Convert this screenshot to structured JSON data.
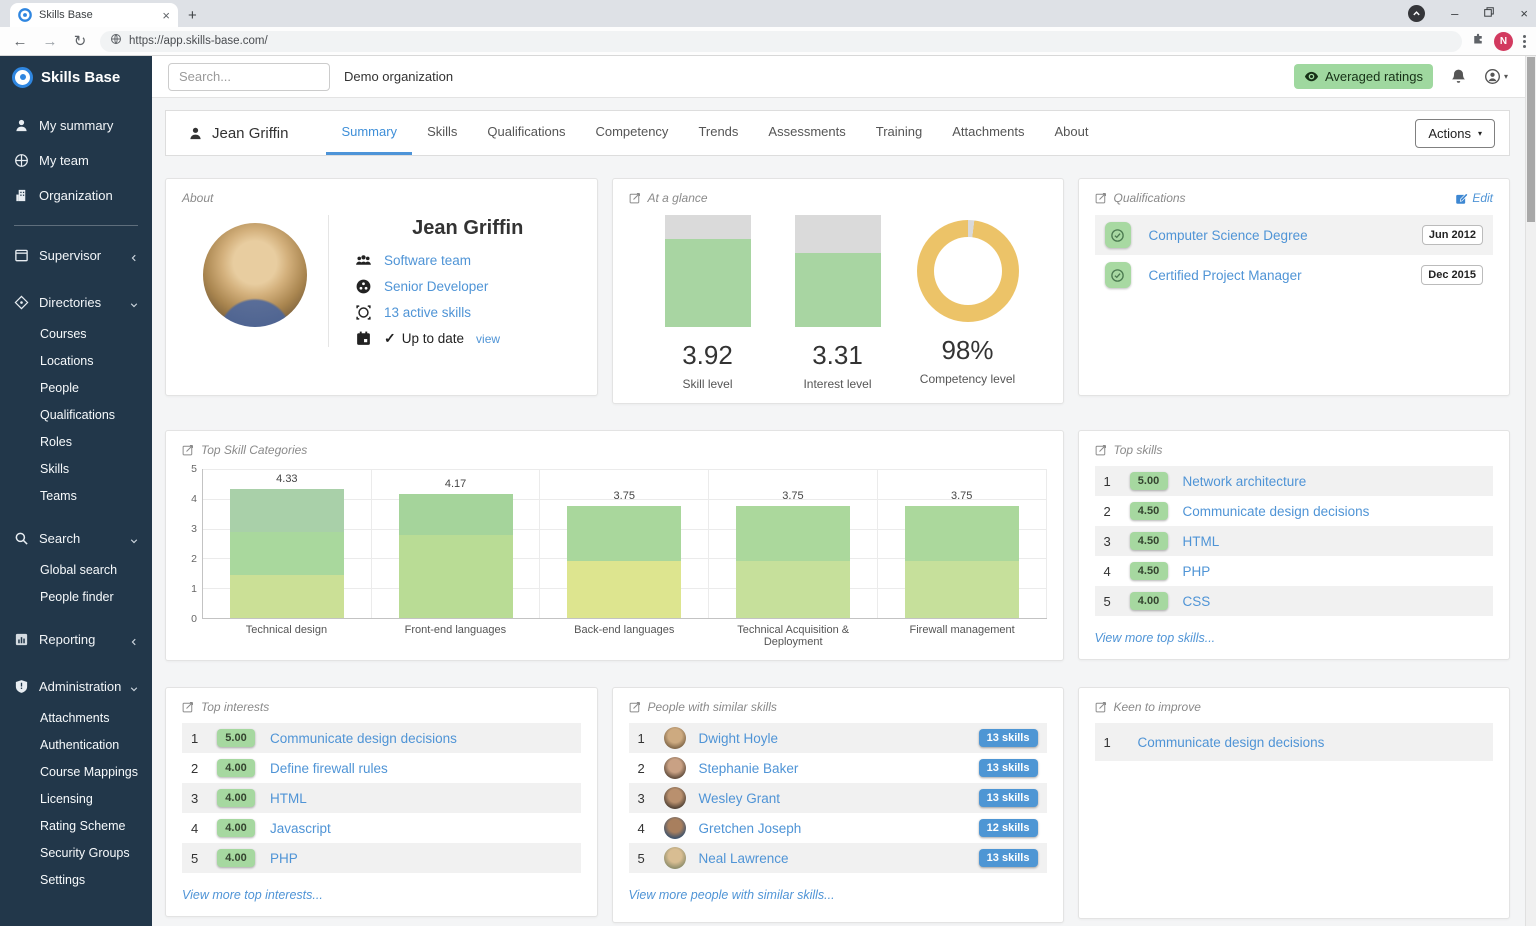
{
  "browser": {
    "tab_title": "Skills Base",
    "url": "https://app.skills-base.com/",
    "profile_initial": "N"
  },
  "topbar": {
    "search_placeholder": "Search...",
    "organization": "Demo organization",
    "averaged_ratings_label": "Averaged ratings"
  },
  "sidebar": {
    "brand": "Skills Base",
    "primary": [
      {
        "label": "My summary",
        "icon": "user-icon"
      },
      {
        "label": "My team",
        "icon": "users-icon"
      },
      {
        "label": "Organization",
        "icon": "building-icon"
      }
    ],
    "sections": [
      {
        "label": "Supervisor",
        "icon": "window-icon",
        "state": "collapsed",
        "children": []
      },
      {
        "label": "Directories",
        "icon": "compass-icon",
        "state": "expanded",
        "children": [
          "Courses",
          "Locations",
          "People",
          "Qualifications",
          "Roles",
          "Skills",
          "Teams"
        ]
      },
      {
        "label": "Search",
        "icon": "search-icon",
        "state": "expanded",
        "children": [
          "Global search",
          "People finder"
        ]
      },
      {
        "label": "Reporting",
        "icon": "chart-icon",
        "state": "collapsed",
        "children": []
      },
      {
        "label": "Administration",
        "icon": "shield-icon",
        "state": "expanded",
        "children": [
          "Attachments",
          "Authentication",
          "Course Mappings",
          "Licensing",
          "Rating Scheme",
          "Security Groups",
          "Settings"
        ]
      }
    ]
  },
  "profile": {
    "name": "Jean Griffin",
    "tabs": [
      "Summary",
      "Skills",
      "Qualifications",
      "Competency",
      "Trends",
      "Assessments",
      "Training",
      "Attachments",
      "About"
    ],
    "active_tab": "Summary",
    "actions_label": "Actions"
  },
  "about": {
    "title": "About",
    "name": "Jean Griffin",
    "team": "Software team",
    "role": "Senior Developer",
    "active_skills": "13 active skills",
    "status": "Up to date",
    "status_link": "view"
  },
  "at_a_glance": {
    "title": "At a glance",
    "metrics": [
      {
        "type": "gauge",
        "value": "3.92",
        "label": "Skill level",
        "pct": 78.4
      },
      {
        "type": "gauge",
        "value": "3.31",
        "label": "Interest level",
        "pct": 66.2
      },
      {
        "type": "donut",
        "value": "98%",
        "label": "Competency level",
        "pct": 98
      }
    ]
  },
  "qualifications": {
    "title": "Qualifications",
    "edit_label": "Edit",
    "items": [
      {
        "name": "Computer Science Degree",
        "date": "Jun 2012"
      },
      {
        "name": "Certified Project Manager",
        "date": "Dec 2015"
      }
    ]
  },
  "chart_data": {
    "type": "bar",
    "title": "Top Skill Categories",
    "categories": [
      "Technical design",
      "Front-end languages",
      "Back-end languages",
      "Technical Acquisition & Deployment",
      "Firewall management"
    ],
    "values": [
      4.33,
      4.17,
      3.75,
      3.75,
      3.75
    ],
    "ylim": [
      0,
      5
    ],
    "yticks": [
      0,
      1,
      2,
      3,
      4,
      5
    ],
    "grid": true,
    "bars": [
      {
        "category": "Technical design",
        "value": 4.33,
        "label": "4.33",
        "segments": [
          {
            "to": 1.45,
            "color": "#cbe096"
          },
          {
            "to": 2.9,
            "color": "#a9d89d"
          },
          {
            "to": 4.33,
            "color": "#a9d0a9"
          }
        ]
      },
      {
        "category": "Front-end languages",
        "value": 4.17,
        "label": "4.17",
        "segments": [
          {
            "to": 2.8,
            "color": "#b9dc95"
          },
          {
            "to": 4.17,
            "color": "#a5d49b"
          }
        ]
      },
      {
        "category": "Back-end languages",
        "value": 3.75,
        "label": "3.75",
        "segments": [
          {
            "to": 1.9,
            "color": "#dde58f"
          },
          {
            "to": 3.75,
            "color": "#a9d79c"
          }
        ]
      },
      {
        "category": "Technical Acquisition & Deployment",
        "value": 3.75,
        "label": "3.75",
        "segments": [
          {
            "to": 1.9,
            "color": "#c6e09b"
          },
          {
            "to": 3.75,
            "color": "#abd89c"
          }
        ]
      },
      {
        "category": "Firewall management",
        "value": 3.75,
        "label": "3.75",
        "segments": [
          {
            "to": 1.9,
            "color": "#c6e09b"
          },
          {
            "to": 3.75,
            "color": "#abd89c"
          }
        ]
      }
    ]
  },
  "top_skills": {
    "title": "Top skills",
    "view_more": "View more top skills...",
    "items": [
      {
        "rank": "1",
        "score": "5.00",
        "name": "Network architecture"
      },
      {
        "rank": "2",
        "score": "4.50",
        "name": "Communicate design decisions"
      },
      {
        "rank": "3",
        "score": "4.50",
        "name": "HTML"
      },
      {
        "rank": "4",
        "score": "4.50",
        "name": "PHP"
      },
      {
        "rank": "5",
        "score": "4.00",
        "name": "CSS"
      }
    ]
  },
  "top_interests": {
    "title": "Top interests",
    "view_more": "View more top interests...",
    "items": [
      {
        "rank": "1",
        "score": "5.00",
        "name": "Communicate design decisions"
      },
      {
        "rank": "2",
        "score": "4.00",
        "name": "Define firewall rules"
      },
      {
        "rank": "3",
        "score": "4.00",
        "name": "HTML"
      },
      {
        "rank": "4",
        "score": "4.00",
        "name": "Javascript"
      },
      {
        "rank": "5",
        "score": "4.00",
        "name": "PHP"
      }
    ]
  },
  "similar_people": {
    "title": "People with similar skills",
    "view_more": "View more people with similar skills...",
    "items": [
      {
        "rank": "1",
        "name": "Dwight Hoyle",
        "badge": "13 skills"
      },
      {
        "rank": "2",
        "name": "Stephanie Baker",
        "badge": "13 skills"
      },
      {
        "rank": "3",
        "name": "Wesley Grant",
        "badge": "13 skills"
      },
      {
        "rank": "4",
        "name": "Gretchen Joseph",
        "badge": "12 skills"
      },
      {
        "rank": "5",
        "name": "Neal Lawrence",
        "badge": "13 skills"
      }
    ]
  },
  "keen_to_improve": {
    "title": "Keen to improve",
    "items": [
      {
        "rank": "1",
        "name": "Communicate design decisions"
      }
    ]
  },
  "colors": {
    "link": "#4f94d6",
    "active_tab": "#3f8fd8",
    "badge_green": "#a6d8a0",
    "badge_blue": "#4e96d4",
    "gauge_green": "#a8d5a2",
    "gauge_track": "#dadada",
    "donut_gold": "#ecc368",
    "sidebar_bg": "#22374a",
    "brand_blue": "#2f86e0",
    "averaged_pill_bg": "#9fd89f"
  },
  "icons": {
    "back": "←",
    "forward": "→",
    "reload": "↻",
    "caret_down": "▾",
    "check": "✓"
  }
}
